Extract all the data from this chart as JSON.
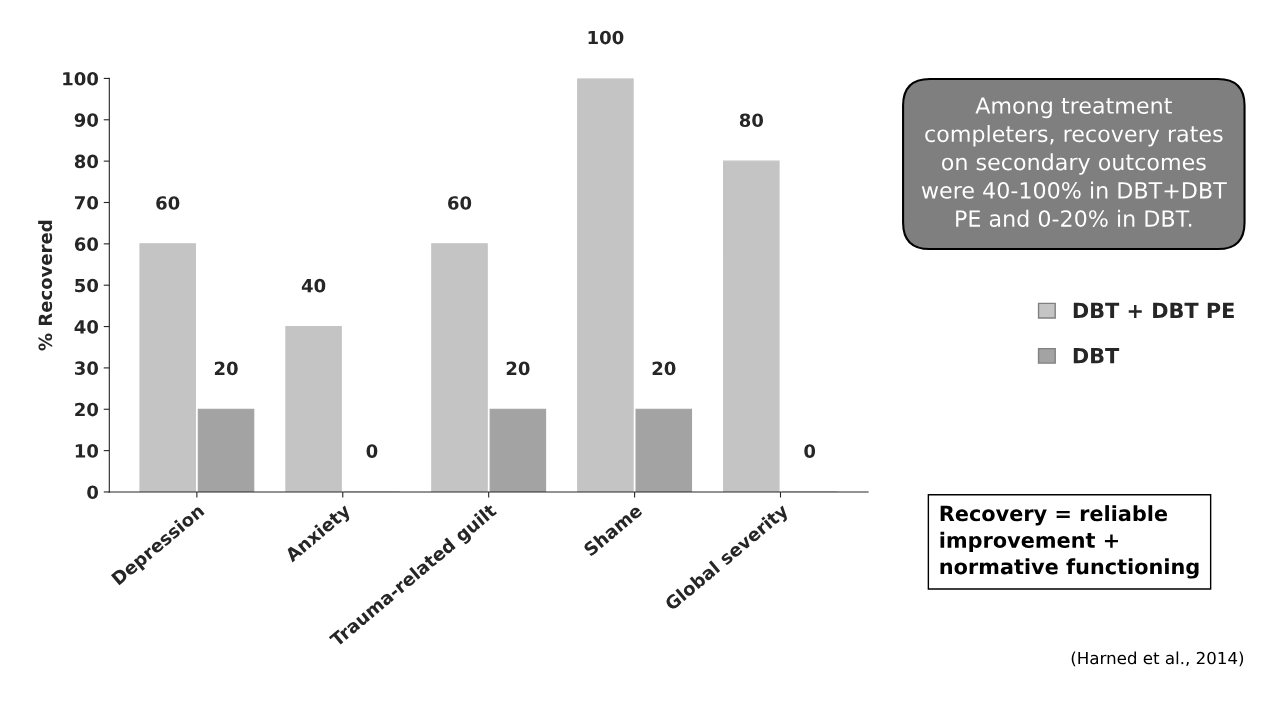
{
  "chart_data": {
    "type": "bar",
    "ylabel": "% Recovered",
    "categories": [
      "Depression",
      "Anxiety",
      "Trauma-related guilt",
      "Shame",
      "Global severity"
    ],
    "series": [
      {
        "name": "DBT + DBT PE",
        "color": "#c4c4c4",
        "values": [
          60,
          40,
          60,
          100,
          80
        ]
      },
      {
        "name": "DBT",
        "color": "#a3a3a3",
        "values": [
          20,
          0,
          20,
          20,
          0
        ]
      }
    ],
    "ylim": [
      0,
      100
    ],
    "yticks": [
      0,
      10,
      20,
      30,
      40,
      50,
      60,
      70,
      80,
      90,
      100
    ],
    "data_labels": true,
    "grid": false,
    "legend": "right",
    "annotations": [
      "Among treatment completers, recovery rates on secondary outcomes were 40-100% in DBT+DBT PE and 0-20% in DBT.",
      "Recovery = reliable improvement + normative functioning",
      "(Harned et al., 2014)"
    ]
  }
}
